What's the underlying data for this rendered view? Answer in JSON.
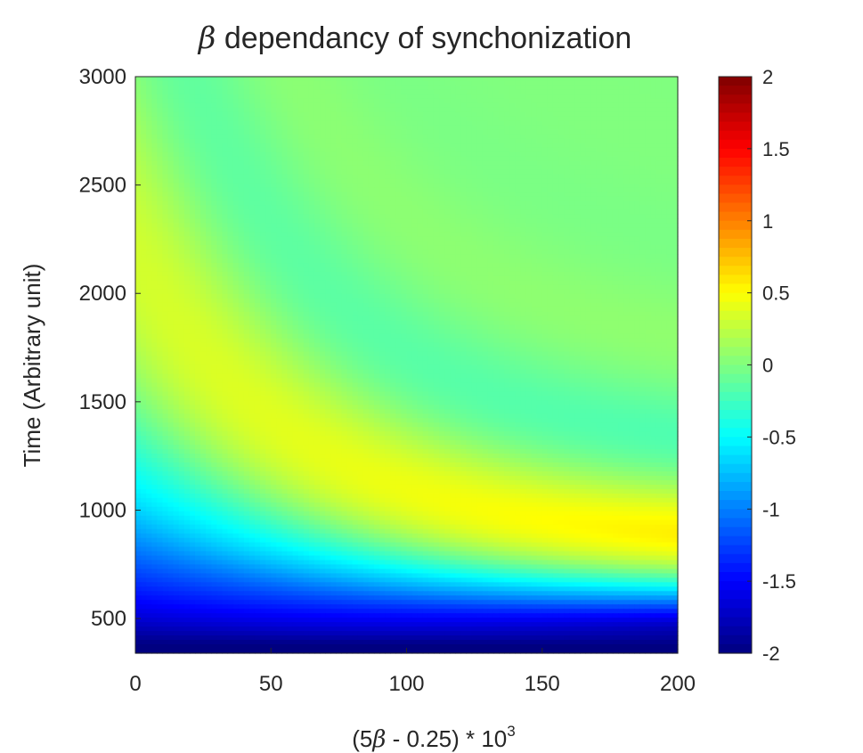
{
  "chart_data": {
    "type": "heatmap",
    "title": {
      "symbol": "β",
      "text": " dependancy of synchonization"
    },
    "xlabel": {
      "prefix": "(5",
      "symbol": "β",
      "suffix": " - 0.25) * 10",
      "exponent": "3"
    },
    "ylabel": "Time (Arbitrary unit)",
    "xlim": [
      0,
      200
    ],
    "ylim": [
      340,
      3000
    ],
    "x_ticks": [
      0,
      50,
      100,
      150,
      200
    ],
    "y_ticks": [
      500,
      1000,
      1500,
      2000,
      2500,
      3000
    ],
    "colorbar": {
      "range": [
        -2,
        2
      ],
      "ticks": [
        "2",
        "1.5",
        "1",
        "0.5",
        "0",
        "-0.5",
        "-1",
        "-1.5",
        "-2"
      ],
      "colormap": "jet"
    },
    "field": {
      "description": "Damped oscillation whose period shrinks as x grows; low region is strongly negative.",
      "grid_nx": 100,
      "grid_ny": 130
    }
  }
}
